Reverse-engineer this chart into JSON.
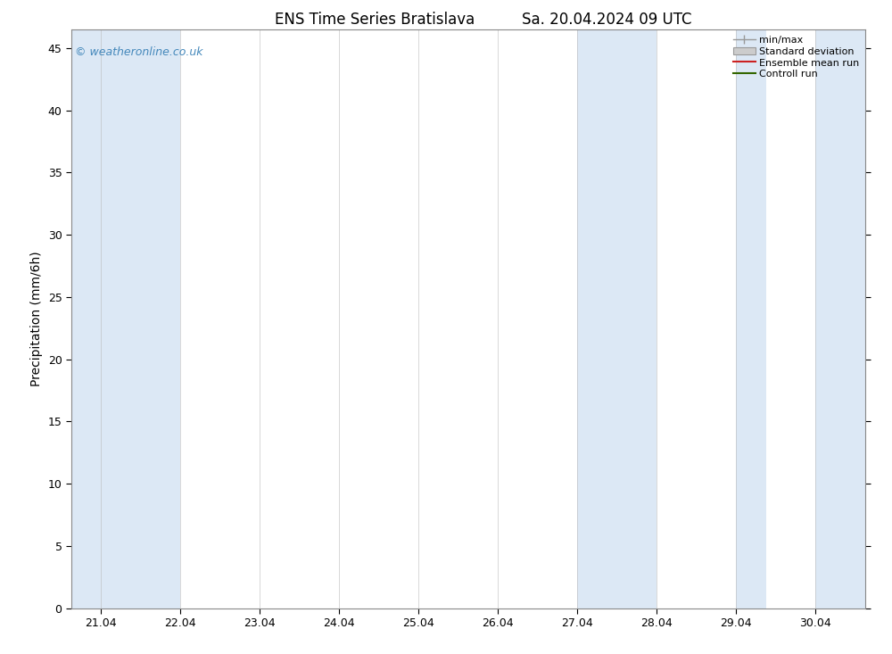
{
  "title_left": "ENS Time Series Bratislava",
  "title_right": "Sa. 20.04.2024 09 UTC",
  "ylabel": "Precipitation (mm/6h)",
  "watermark": "© weatheronline.co.uk",
  "watermark_color": "#4488bb",
  "background_color": "#ffffff",
  "plot_bg_color": "#ffffff",
  "shade_color": "#dce8f5",
  "ylim": [
    0,
    46.5
  ],
  "yticks": [
    0,
    5,
    10,
    15,
    20,
    25,
    30,
    35,
    40,
    45
  ],
  "x_min": 20.625,
  "x_max": 30.625,
  "x_labels": [
    "21.04",
    "22.04",
    "23.04",
    "24.04",
    "25.04",
    "26.04",
    "27.04",
    "28.04",
    "29.04",
    "30.04"
  ],
  "x_tick_positions": [
    21.0,
    22.0,
    23.0,
    24.0,
    25.0,
    26.0,
    27.0,
    28.0,
    29.0,
    30.0
  ],
  "shaded_regions": [
    [
      20.625,
      22.0
    ],
    [
      27.0,
      28.0
    ],
    [
      29.0,
      29.375
    ],
    [
      30.0,
      30.625
    ]
  ],
  "legend_labels": [
    "min/max",
    "Standard deviation",
    "Ensemble mean run",
    "Controll run"
  ],
  "minmax_color": "#999999",
  "std_facecolor": "#cccccc",
  "std_edgecolor": "#999999",
  "ensemble_color": "#cc2222",
  "control_color": "#336600",
  "title_fontsize": 12,
  "tick_fontsize": 9,
  "ylabel_fontsize": 10,
  "watermark_fontsize": 9,
  "legend_fontsize": 8
}
